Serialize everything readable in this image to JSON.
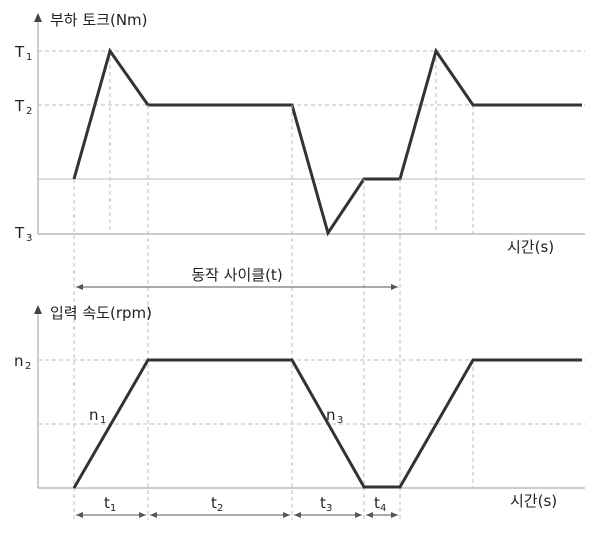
{
  "torque_graph": {
    "title": "부하 토크(Nm)",
    "x_label": "시간(s)",
    "levels": [
      {
        "main": "T",
        "sub": "1"
      },
      {
        "main": "T",
        "sub": "2"
      },
      {
        "main": "T",
        "sub": "3"
      }
    ]
  },
  "cycle_label": "동작 사이클(t)",
  "speed_graph": {
    "title": "입력 속도(rpm)",
    "x_label": "시간(s)",
    "level": {
      "main": "n",
      "sub": "2"
    },
    "segment_labels": [
      {
        "main": "n",
        "sub": "1"
      },
      {
        "main": "n",
        "sub": "3"
      }
    ]
  },
  "time_intervals": [
    {
      "main": "t",
      "sub": "1"
    },
    {
      "main": "t",
      "sub": "2"
    },
    {
      "main": "t",
      "sub": "3"
    },
    {
      "main": "t",
      "sub": "4"
    }
  ]
}
